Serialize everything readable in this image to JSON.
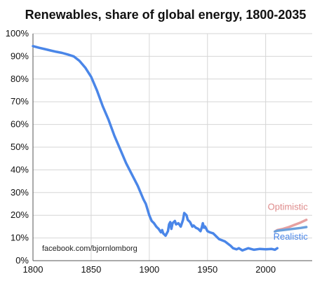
{
  "chart_data": {
    "type": "line",
    "title": "Renewables, share of global energy, 1800-2035",
    "xlabel": "",
    "ylabel": "",
    "xlim": [
      1800,
      2040
    ],
    "ylim": [
      0,
      100
    ],
    "x_ticks": [
      1800,
      1850,
      1900,
      1950,
      2000
    ],
    "y_ticks": [
      0,
      10,
      20,
      30,
      40,
      50,
      60,
      70,
      80,
      90,
      100
    ],
    "y_tick_suffix": "%",
    "grid": true,
    "annotation": "facebook.com/bjornlomborg",
    "series": [
      {
        "name": "",
        "color": "#4a86e8",
        "x": [
          1800,
          1805,
          1810,
          1815,
          1820,
          1825,
          1830,
          1835,
          1840,
          1845,
          1850,
          1855,
          1860,
          1865,
          1870,
          1875,
          1880,
          1885,
          1890,
          1895,
          1897,
          1900,
          1902,
          1904,
          1906,
          1908,
          1910,
          1911,
          1912,
          1913,
          1914,
          1915,
          1916,
          1917,
          1918,
          1919,
          1920,
          1921,
          1922,
          1923,
          1925,
          1927,
          1928,
          1929,
          1930,
          1932,
          1933,
          1935,
          1937,
          1938,
          1940,
          1942,
          1944,
          1945,
          1946,
          1947,
          1948,
          1950,
          1952,
          1955,
          1960,
          1965,
          1970,
          1972,
          1975,
          1977,
          1980,
          1985,
          1990,
          1995,
          2000,
          2005,
          2008,
          2010
        ],
        "y": [
          94.5,
          93.8,
          93.2,
          92.6,
          92,
          91.5,
          90.8,
          90,
          88,
          85,
          81,
          75,
          68,
          62,
          55,
          49,
          43,
          38,
          33,
          27,
          25,
          20,
          17.5,
          16.5,
          15,
          14,
          12.5,
          13.5,
          12,
          11.5,
          11,
          12,
          13,
          16,
          17,
          14,
          16.5,
          17,
          17.5,
          16,
          16.5,
          15,
          16.5,
          18,
          21,
          20,
          18,
          17,
          15,
          15.5,
          14.5,
          14,
          13,
          14.5,
          16.5,
          14.5,
          15,
          13,
          12.5,
          12,
          9.5,
          8.5,
          6.5,
          5.5,
          5,
          5.5,
          4.5,
          5.5,
          4.8,
          5.2,
          5,
          5.2,
          4.8,
          5.5
        ]
      },
      {
        "name": "Optimistic",
        "color": "#e6a0a0",
        "x": [
          2008,
          2010,
          2015,
          2020,
          2025,
          2030,
          2035
        ],
        "y": [
          12.8,
          13.5,
          14,
          14.8,
          15.8,
          16.8,
          18
        ]
      },
      {
        "name": "Realistic",
        "color": "#6aa0dc",
        "x": [
          2008,
          2010,
          2015,
          2020,
          2025,
          2030,
          2035
        ],
        "y": [
          12.8,
          13.2,
          13.5,
          13.8,
          14.1,
          14.4,
          14.8
        ]
      }
    ]
  }
}
